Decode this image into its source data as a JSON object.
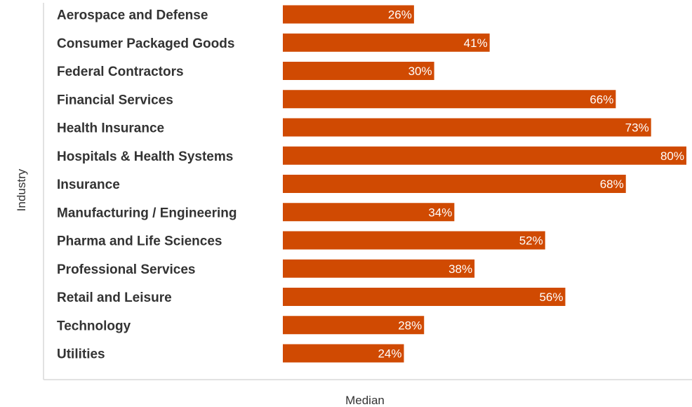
{
  "chart_data": {
    "type": "bar",
    "orientation": "horizontal",
    "categories": [
      "Aerospace and Defense",
      "Consumer Packaged Goods",
      "Federal Contractors",
      "Financial Services",
      "Health Insurance",
      "Hospitals & Health Systems",
      "Insurance",
      "Manufacturing / Engineering",
      "Pharma and Life Sciences",
      "Professional Services",
      "Retail and Leisure",
      "Technology",
      "Utilities"
    ],
    "values": [
      26,
      41,
      30,
      66,
      73,
      80,
      68,
      34,
      52,
      38,
      56,
      28,
      24
    ],
    "value_labels": [
      "26%",
      "41%",
      "30%",
      "66%",
      "73%",
      "80%",
      "68%",
      "34%",
      "52%",
      "38%",
      "56%",
      "28%",
      "24%"
    ],
    "xlabel": "Median",
    "ylabel": "Industry",
    "xlim": [
      0,
      80
    ],
    "grid": false,
    "colors": {
      "bar": "#D04A02",
      "label_text": "#FFFFFF",
      "category_text": "#333333",
      "axis_line": "#D9D9D9"
    }
  }
}
